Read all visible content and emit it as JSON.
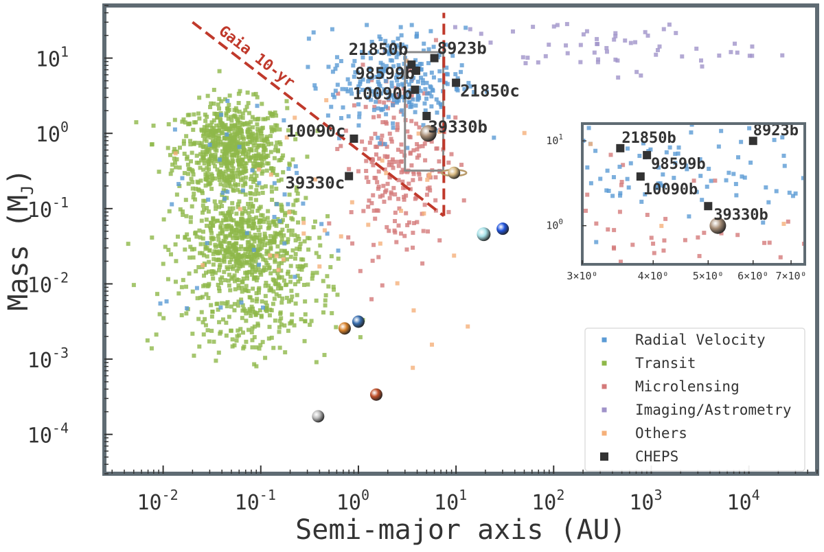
{
  "colors": {
    "radial_velocity": "#5b9bd5",
    "transit": "#8fb84a",
    "microlensing": "#d47a7a",
    "imaging": "#a093c9",
    "others": "#f5b07a",
    "cheps": "#333333",
    "gaia_line": "#c0392b",
    "frame": "#5f6b73"
  },
  "chart_data": {
    "type": "scatter",
    "title": "",
    "xlabel": "Semi-major axis (AU)",
    "ylabel": "Mass (M",
    "ylabel_sub": "J",
    "ylabel_close": ")",
    "xscale": "log",
    "yscale": "log",
    "xlim": [
      0.0025,
      50000
    ],
    "ylim": [
      3e-05,
      50
    ],
    "xticks": [
      {
        "value": 0.01,
        "base": "10",
        "exp": "-2"
      },
      {
        "value": 0.1,
        "base": "10",
        "exp": "-1"
      },
      {
        "value": 1,
        "base": "10",
        "exp": "0"
      },
      {
        "value": 10,
        "base": "10",
        "exp": "1"
      },
      {
        "value": 100,
        "base": "10",
        "exp": "2"
      },
      {
        "value": 1000,
        "base": "10",
        "exp": "3"
      },
      {
        "value": 10000,
        "base": "10",
        "exp": "4"
      }
    ],
    "yticks": [
      {
        "value": 0.0001,
        "base": "10",
        "exp": "-4"
      },
      {
        "value": 0.001,
        "base": "10",
        "exp": "-3"
      },
      {
        "value": 0.01,
        "base": "10",
        "exp": "-2"
      },
      {
        "value": 0.1,
        "base": "10",
        "exp": "-1"
      },
      {
        "value": 1,
        "base": "10",
        "exp": "0"
      },
      {
        "value": 10,
        "base": "10",
        "exp": "1"
      }
    ],
    "legend": {
      "position": "bottom-right",
      "entries": [
        {
          "key": "radial_velocity",
          "label": "Radial Velocity"
        },
        {
          "key": "transit",
          "label": "Transit"
        },
        {
          "key": "microlensing",
          "label": "Microlensing"
        },
        {
          "key": "imaging",
          "label": "Imaging/Astrometry"
        },
        {
          "key": "others",
          "label": "Others"
        },
        {
          "key": "cheps",
          "label": "CHEPS"
        }
      ]
    },
    "population_clusters": [
      {
        "series": "transit",
        "count": 700,
        "x_center": 0.05,
        "x_sigma_dex": 0.28,
        "y_center": 0.6,
        "y_sigma_dex": 0.32
      },
      {
        "series": "transit",
        "count": 650,
        "x_center": 0.07,
        "x_sigma_dex": 0.32,
        "y_center": 0.03,
        "y_sigma_dex": 0.35
      },
      {
        "series": "transit",
        "count": 180,
        "x_center": 0.08,
        "x_sigma_dex": 0.4,
        "y_center": 0.004,
        "y_sigma_dex": 0.3
      },
      {
        "series": "radial_velocity",
        "count": 260,
        "x_center": 2.5,
        "x_sigma_dex": 0.35,
        "y_center": 5,
        "y_sigma_dex": 0.35
      },
      {
        "series": "radial_velocity",
        "count": 45,
        "x_center": 0.08,
        "x_sigma_dex": 0.5,
        "y_center": 0.1,
        "y_sigma_dex": 0.8
      },
      {
        "series": "microlensing",
        "count": 220,
        "x_center": 2.5,
        "x_sigma_dex": 0.25,
        "y_center": 0.4,
        "y_sigma_dex": 0.6
      },
      {
        "series": "imaging",
        "count": 60,
        "x_center": 300,
        "x_sigma_dex": 0.75,
        "y_center": 14,
        "y_sigma_dex": 0.18
      },
      {
        "series": "others",
        "count": 40,
        "x_center": 0.5,
        "x_sigma_dex": 0.8,
        "y_center": 0.1,
        "y_sigma_dex": 1.0
      }
    ],
    "cheps": [
      {
        "name": "21850b",
        "a": 3.5,
        "m": 8.2
      },
      {
        "name": "8923b",
        "a": 6.0,
        "m": 10.0
      },
      {
        "name": "98599b",
        "a": 3.9,
        "m": 6.8
      },
      {
        "name": "10090b",
        "a": 3.8,
        "m": 3.8
      },
      {
        "name": "21850c",
        "a": 10.0,
        "m": 4.7
      },
      {
        "name": "39330b",
        "a": 5.0,
        "m": 1.7
      },
      {
        "name": "10090c",
        "a": 0.9,
        "m": 0.85
      },
      {
        "name": "39330c",
        "a": 0.8,
        "m": 0.27
      }
    ],
    "solar_system": [
      {
        "name": "Mercury",
        "a": 0.387,
        "m": 0.000174,
        "color": "#b8b8b8"
      },
      {
        "name": "Venus",
        "a": 0.723,
        "m": 0.00256,
        "color": "#d9822b"
      },
      {
        "name": "Earth",
        "a": 1.0,
        "m": 0.00315,
        "color": "#3a6fb0"
      },
      {
        "name": "Mars",
        "a": 1.524,
        "m": 0.000338,
        "color": "#c0502a"
      },
      {
        "name": "Jupiter",
        "a": 5.2,
        "m": 1.0,
        "color": "#a88f78"
      },
      {
        "name": "Saturn",
        "a": 9.54,
        "m": 0.299,
        "color": "#d8b980"
      },
      {
        "name": "Uranus",
        "a": 19.2,
        "m": 0.0457,
        "color": "#a8e2e8"
      },
      {
        "name": "Neptune",
        "a": 30.1,
        "m": 0.054,
        "color": "#2255dd"
      }
    ],
    "gaia_line": {
      "label": "Gaia 10-yr",
      "diagonal": [
        [
          0.02,
          30
        ],
        [
          7.5,
          0.08
        ]
      ],
      "vertical": [
        [
          7.5,
          0.08
        ],
        [
          7.5,
          40
        ]
      ]
    },
    "zoom_box": {
      "x": [
        3.0,
        7.4
      ],
      "y": [
        0.32,
        12
      ]
    },
    "inset": {
      "xlim": [
        3.0,
        7.4
      ],
      "ylim": [
        0.35,
        16
      ],
      "xticks": [
        {
          "value": 3,
          "label": "3×10⁰"
        },
        {
          "value": 4,
          "label": "4×10⁰"
        },
        {
          "value": 5,
          "label": "5×10⁰"
        },
        {
          "value": 6,
          "label": "6×10⁰"
        },
        {
          "value": 7,
          "label": "7×10⁰"
        }
      ],
      "yticks": [
        {
          "value": 1,
          "base": "10",
          "exp": "0"
        },
        {
          "value": 10,
          "base": "10",
          "exp": "1"
        }
      ]
    }
  }
}
